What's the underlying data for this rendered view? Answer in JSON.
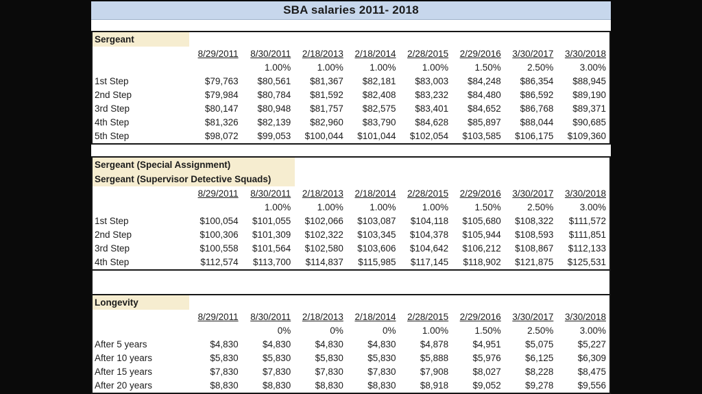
{
  "title": "SBA salaries 2011- 2018",
  "columns": [
    "8/29/2011",
    "8/30/2011",
    "2/18/2013",
    "2/18/2014",
    "2/28/2015",
    "2/29/2016",
    "3/30/2017",
    "3/30/2018"
  ],
  "sections": [
    {
      "labels": [
        "Sergeant"
      ],
      "percents": [
        "",
        "1.00%",
        "1.00%",
        "1.00%",
        "1.00%",
        "1.50%",
        "2.50%",
        "3.00%"
      ],
      "rows": [
        {
          "label": "1st Step",
          "values": [
            "$79,763",
            "$80,561",
            "$81,367",
            "$82,181",
            "$83,003",
            "$84,248",
            "$86,354",
            "$88,945"
          ]
        },
        {
          "label": "2nd Step",
          "values": [
            "$79,984",
            "$80,784",
            "$81,592",
            "$82,408",
            "$83,232",
            "$84,480",
            "$86,592",
            "$89,190"
          ]
        },
        {
          "label": "3rd Step",
          "values": [
            "$80,147",
            "$80,948",
            "$81,757",
            "$82,575",
            "$83,401",
            "$84,652",
            "$86,768",
            "$89,371"
          ]
        },
        {
          "label": "4th Step",
          "values": [
            "$81,326",
            "$82,139",
            "$82,960",
            "$83,790",
            "$84,628",
            "$85,897",
            "$88,044",
            "$90,685"
          ]
        },
        {
          "label": "5th Step",
          "values": [
            "$98,072",
            "$99,053",
            "$100,044",
            "$101,044",
            "$102,054",
            "$103,585",
            "$106,175",
            "$109,360"
          ]
        }
      ]
    },
    {
      "labels": [
        "Sergeant (Special Assignment)",
        "Sergeant (Supervisor Detective Squads)"
      ],
      "percents": [
        "",
        "1.00%",
        "1.00%",
        "1.00%",
        "1.00%",
        "1.50%",
        "2.50%",
        "3.00%"
      ],
      "rows": [
        {
          "label": "1st Step",
          "values": [
            "$100,054",
            "$101,055",
            "$102,066",
            "$103,087",
            "$104,118",
            "$105,680",
            "$108,322",
            "$111,572"
          ]
        },
        {
          "label": "2nd Step",
          "values": [
            "$100,306",
            "$101,309",
            "$102,322",
            "$103,345",
            "$104,378",
            "$105,944",
            "$108,593",
            "$111,851"
          ]
        },
        {
          "label": "3rd Step",
          "values": [
            "$100,558",
            "$101,564",
            "$102,580",
            "$103,606",
            "$104,642",
            "$106,212",
            "$108,867",
            "$112,133"
          ]
        },
        {
          "label": "4th Step",
          "values": [
            "$112,574",
            "$113,700",
            "$114,837",
            "$115,985",
            "$117,145",
            "$118,902",
            "$121,875",
            "$125,531"
          ]
        }
      ]
    },
    {
      "labels": [
        "Longevity"
      ],
      "percents": [
        "",
        "0%",
        "0%",
        "0%",
        "1.00%",
        "1.50%",
        "2.50%",
        "3.00%"
      ],
      "rows": [
        {
          "label": "After 5 years",
          "values": [
            "$4,830",
            "$4,830",
            "$4,830",
            "$4,830",
            "$4,878",
            "$4,951",
            "$5,075",
            "$5,227"
          ]
        },
        {
          "label": "After 10 years",
          "values": [
            "$5,830",
            "$5,830",
            "$5,830",
            "$5,830",
            "$5,888",
            "$5,976",
            "$6,125",
            "$6,309"
          ]
        },
        {
          "label": "After 15 years",
          "values": [
            "$7,830",
            "$7,830",
            "$7,830",
            "$7,830",
            "$7,908",
            "$8,027",
            "$8,228",
            "$8,475"
          ]
        },
        {
          "label": "After 20 years",
          "values": [
            "$8,830",
            "$8,830",
            "$8,830",
            "$8,830",
            "$8,918",
            "$9,052",
            "$9,278",
            "$9,556"
          ]
        }
      ]
    }
  ],
  "colors": {
    "title_bg": "#c7d7ec",
    "section_label_bg": "#f6edd0",
    "frame_bg": "#0a0a0a",
    "sheet_bg": "#ffffff",
    "border": "#161616",
    "text": "#1b1b1b"
  }
}
